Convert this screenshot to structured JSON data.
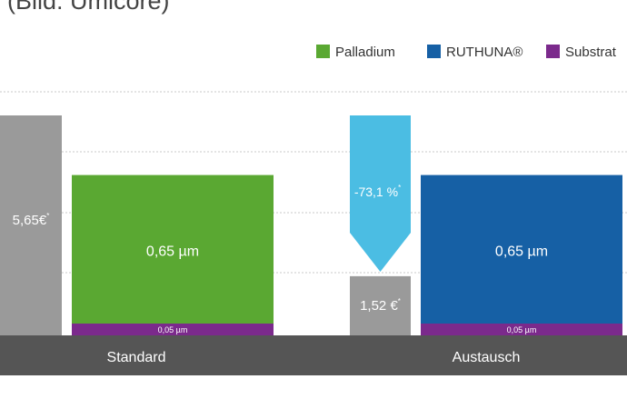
{
  "caption": "(Bild: Umicore)",
  "legend": [
    {
      "label": "Palladium",
      "color": "#5aa832"
    },
    {
      "label": "RUTHUNA®",
      "color": "#1660a5"
    },
    {
      "label": "Substrat",
      "color": "#7b2a8c"
    }
  ],
  "chart_data": {
    "type": "bar",
    "categories": [
      "Standard",
      "Austausch"
    ],
    "layer_series": [
      {
        "name": "Palladium",
        "category": "Standard",
        "thickness": 0.65,
        "label": "0,65 µm",
        "color": "#5aa832"
      },
      {
        "name": "RUTHUNA®",
        "category": "Austausch",
        "thickness": 0.65,
        "label": "0,65 µm",
        "color": "#1660a5"
      },
      {
        "name": "Substrat",
        "category": "Standard",
        "thickness": 0.05,
        "label": "0,05 µm",
        "color": "#7b2a8c"
      },
      {
        "name": "Substrat",
        "category": "Austausch",
        "thickness": 0.05,
        "label": "0,05 µm",
        "color": "#7b2a8c"
      }
    ],
    "cost_bars": [
      {
        "category": "Standard",
        "value": 5.65,
        "label": "5,65€",
        "note": "*",
        "color": "#9a9a9a"
      },
      {
        "category": "Austausch",
        "value": 1.52,
        "label": "1,52 €",
        "note": "*",
        "color": "#9a9a9a"
      }
    ],
    "change_arrow": {
      "label": "-73,1 %",
      "note": "*",
      "color": "#4bbde3"
    },
    "legend_position": "top-right",
    "grid": true,
    "axis_color": "#555555"
  }
}
